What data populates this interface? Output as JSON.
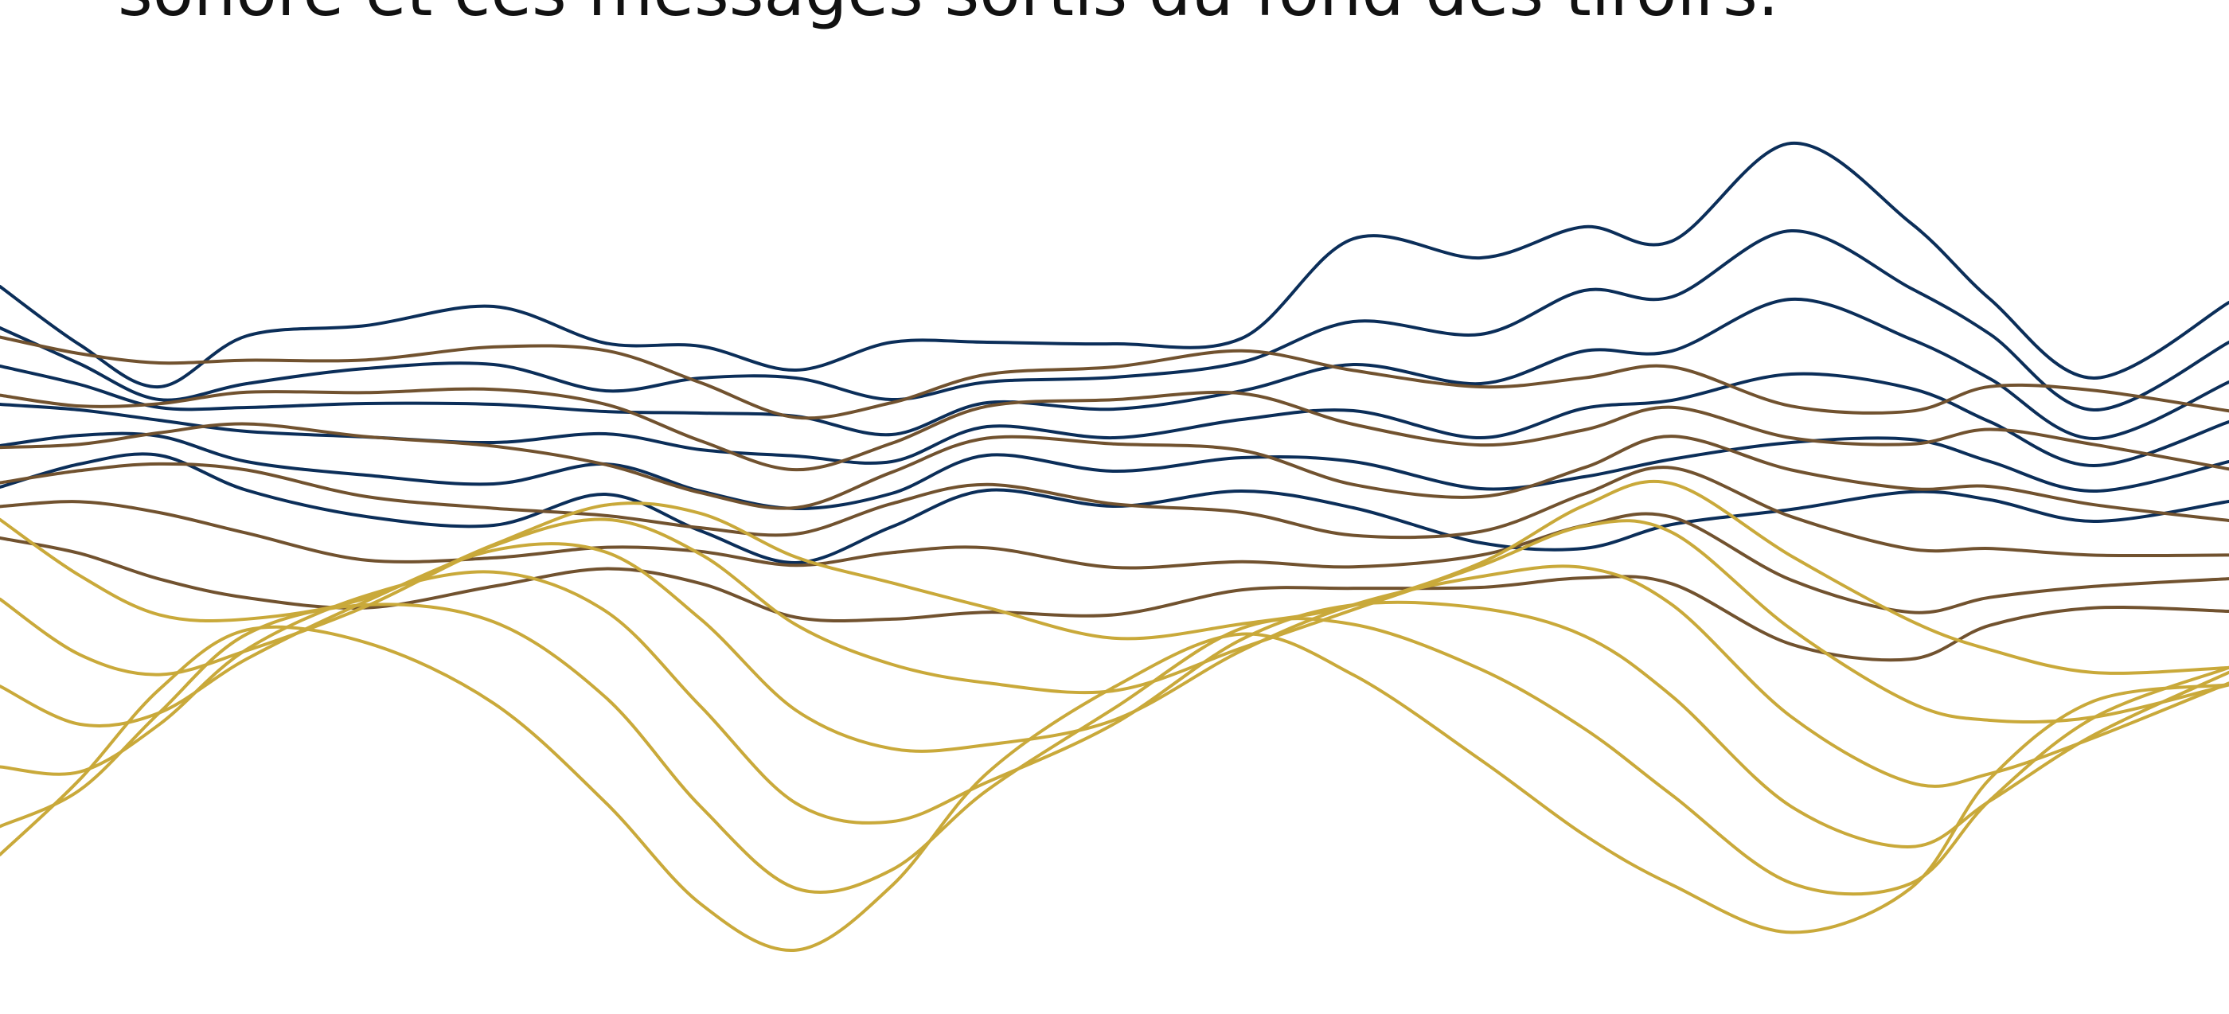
{
  "caption": {
    "text": "sonore et ces messages sortis du fond des tiroirs."
  },
  "wave_art": {
    "colors": {
      "gold": "#C9A93A",
      "brown": "#71522F",
      "navy": "#0B2E59"
    },
    "line_count": 18,
    "color_order": [
      "navy",
      "navy",
      "navy",
      "navy",
      "navy",
      "navy",
      "brown",
      "brown",
      "brown",
      "brown",
      "brown",
      "brown",
      "gold",
      "gold",
      "gold",
      "gold",
      "gold",
      "gold"
    ]
  }
}
